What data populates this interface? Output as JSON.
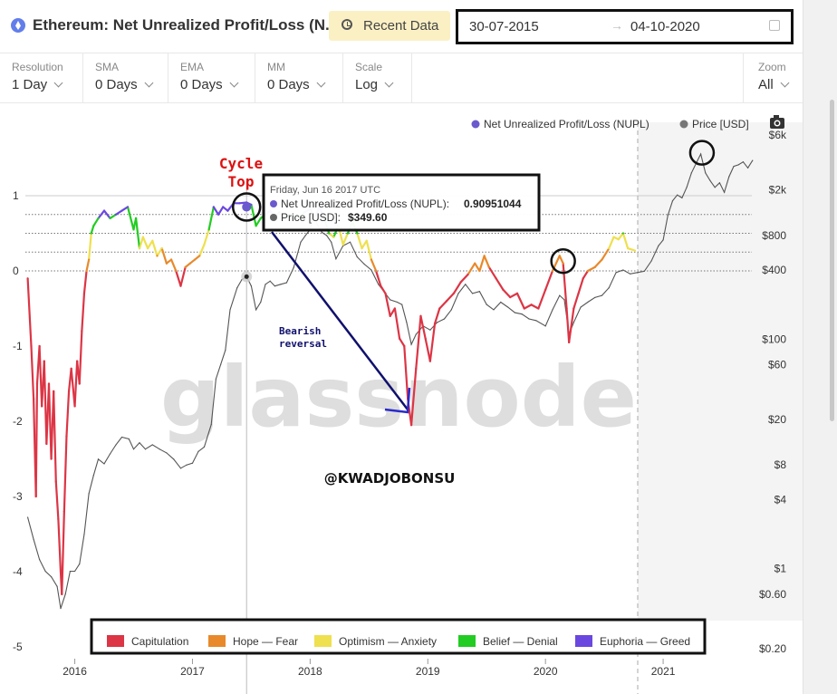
{
  "header": {
    "title": "Ethereum: Net Unrealized Profit/Loss (N...",
    "recent_button": "Recent Data",
    "date_from": "30-07-2015",
    "date_arrow": "→",
    "date_to": "04-10-2020"
  },
  "controls": [
    {
      "label": "Resolution",
      "value": "1 Day"
    },
    {
      "label": "SMA",
      "value": "0 Days"
    },
    {
      "label": "EMA",
      "value": "0 Days"
    },
    {
      "label": "MM",
      "value": "0 Days"
    },
    {
      "label": "Scale",
      "value": "Log"
    }
  ],
  "zoom": {
    "label": "Zoom",
    "value": "All"
  },
  "colors": {
    "capitulation": "#dc3545",
    "hope_fear": "#e8892b",
    "optimism_anxiety": "#eee04f",
    "belief_denial": "#22cc22",
    "euphoria_greed": "#6a48e0",
    "price": "#555555",
    "nupl_marker": "#6a5acd"
  },
  "chart_data": {
    "type": "line",
    "series": [
      {
        "name": "Net Unrealized Profit/Loss (NUPL)",
        "axis": "left",
        "points": [
          [
            2015.6,
            -0.1
          ],
          [
            2015.63,
            -1.0
          ],
          [
            2015.65,
            -1.7
          ],
          [
            2015.67,
            -3.0
          ],
          [
            2015.68,
            -1.5
          ],
          [
            2015.7,
            -1.0
          ],
          [
            2015.72,
            -1.8
          ],
          [
            2015.74,
            -1.2
          ],
          [
            2015.76,
            -2.3
          ],
          [
            2015.78,
            -1.5
          ],
          [
            2015.8,
            -2.5
          ],
          [
            2015.82,
            -1.6
          ],
          [
            2015.84,
            -2.8
          ],
          [
            2015.86,
            -3.3
          ],
          [
            2015.88,
            -4.0
          ],
          [
            2015.89,
            -4.3
          ],
          [
            2015.91,
            -3.2
          ],
          [
            2015.93,
            -2.2
          ],
          [
            2015.95,
            -1.6
          ],
          [
            2015.97,
            -1.3
          ],
          [
            2016.0,
            -1.8
          ],
          [
            2016.02,
            -1.2
          ],
          [
            2016.04,
            -1.5
          ],
          [
            2016.06,
            -0.8
          ],
          [
            2016.08,
            -0.3
          ],
          [
            2016.1,
            0.0
          ],
          [
            2016.12,
            0.15
          ],
          [
            2016.14,
            0.5
          ],
          [
            2016.16,
            0.6
          ],
          [
            2016.2,
            0.7
          ],
          [
            2016.25,
            0.8
          ],
          [
            2016.3,
            0.7
          ],
          [
            2016.35,
            0.75
          ],
          [
            2016.4,
            0.8
          ],
          [
            2016.45,
            0.85
          ],
          [
            2016.5,
            0.55
          ],
          [
            2016.52,
            0.7
          ],
          [
            2016.55,
            0.3
          ],
          [
            2016.58,
            0.45
          ],
          [
            2016.62,
            0.3
          ],
          [
            2016.66,
            0.4
          ],
          [
            2016.7,
            0.2
          ],
          [
            2016.74,
            0.3
          ],
          [
            2016.78,
            0.1
          ],
          [
            2016.82,
            0.15
          ],
          [
            2016.86,
            0.0
          ],
          [
            2016.9,
            -0.2
          ],
          [
            2016.94,
            0.05
          ],
          [
            2016.98,
            0.1
          ],
          [
            2017.02,
            0.15
          ],
          [
            2017.06,
            0.2
          ],
          [
            2017.1,
            0.35
          ],
          [
            2017.14,
            0.55
          ],
          [
            2017.18,
            0.85
          ],
          [
            2017.22,
            0.75
          ],
          [
            2017.26,
            0.85
          ],
          [
            2017.3,
            0.8
          ],
          [
            2017.35,
            0.9
          ],
          [
            2017.4,
            0.9
          ],
          [
            2017.46,
            0.91
          ],
          [
            2017.5,
            0.88
          ],
          [
            2017.54,
            0.6
          ],
          [
            2017.58,
            0.7
          ],
          [
            2017.62,
            0.75
          ],
          [
            2017.66,
            0.8
          ],
          [
            2017.7,
            0.72
          ],
          [
            2017.74,
            0.78
          ],
          [
            2017.78,
            0.7
          ],
          [
            2017.82,
            0.75
          ],
          [
            2017.86,
            0.68
          ],
          [
            2017.9,
            0.7
          ],
          [
            2017.95,
            0.78
          ],
          [
            2018.0,
            0.82
          ],
          [
            2018.04,
            0.72
          ],
          [
            2018.08,
            0.85
          ],
          [
            2018.12,
            0.7
          ],
          [
            2018.16,
            0.5
          ],
          [
            2018.2,
            0.45
          ],
          [
            2018.24,
            0.6
          ],
          [
            2018.28,
            0.35
          ],
          [
            2018.32,
            0.5
          ],
          [
            2018.36,
            0.65
          ],
          [
            2018.4,
            0.5
          ],
          [
            2018.44,
            0.3
          ],
          [
            2018.48,
            0.4
          ],
          [
            2018.52,
            0.15
          ],
          [
            2018.56,
            0.0
          ],
          [
            2018.6,
            -0.2
          ],
          [
            2018.64,
            -0.3
          ],
          [
            2018.68,
            -0.6
          ],
          [
            2018.72,
            -0.5
          ],
          [
            2018.76,
            -0.9
          ],
          [
            2018.8,
            -1.0
          ],
          [
            2018.83,
            -1.7
          ],
          [
            2018.86,
            -2.05
          ],
          [
            2018.9,
            -1.3
          ],
          [
            2018.94,
            -0.6
          ],
          [
            2018.98,
            -0.9
          ],
          [
            2019.02,
            -1.2
          ],
          [
            2019.06,
            -0.7
          ],
          [
            2019.1,
            -0.5
          ],
          [
            2019.16,
            -0.4
          ],
          [
            2019.22,
            -0.3
          ],
          [
            2019.28,
            -0.15
          ],
          [
            2019.34,
            -0.05
          ],
          [
            2019.4,
            0.1
          ],
          [
            2019.44,
            0.0
          ],
          [
            2019.48,
            0.2
          ],
          [
            2019.52,
            0.05
          ],
          [
            2019.58,
            -0.1
          ],
          [
            2019.64,
            -0.25
          ],
          [
            2019.7,
            -0.35
          ],
          [
            2019.76,
            -0.3
          ],
          [
            2019.82,
            -0.5
          ],
          [
            2019.88,
            -0.45
          ],
          [
            2019.94,
            -0.5
          ],
          [
            2020.0,
            -0.25
          ],
          [
            2020.06,
            0.0
          ],
          [
            2020.12,
            0.2
          ],
          [
            2020.15,
            0.1
          ],
          [
            2020.18,
            -0.5
          ],
          [
            2020.2,
            -0.95
          ],
          [
            2020.24,
            -0.5
          ],
          [
            2020.28,
            -0.3
          ],
          [
            2020.32,
            -0.1
          ],
          [
            2020.36,
            0.0
          ],
          [
            2020.42,
            0.05
          ],
          [
            2020.48,
            0.15
          ],
          [
            2020.54,
            0.3
          ],
          [
            2020.58,
            0.45
          ],
          [
            2020.62,
            0.42
          ],
          [
            2020.66,
            0.5
          ],
          [
            2020.7,
            0.3
          ],
          [
            2020.76,
            0.27
          ]
        ]
      },
      {
        "name": "Price [USD]",
        "axis": "right",
        "points": [
          [
            2015.6,
            2.8
          ],
          [
            2015.65,
            1.8
          ],
          [
            2015.7,
            1.2
          ],
          [
            2015.75,
            0.95
          ],
          [
            2015.8,
            0.85
          ],
          [
            2015.85,
            0.7
          ],
          [
            2015.88,
            0.45
          ],
          [
            2015.92,
            0.6
          ],
          [
            2015.96,
            0.95
          ],
          [
            2016.0,
            0.95
          ],
          [
            2016.04,
            1.1
          ],
          [
            2016.08,
            2.0
          ],
          [
            2016.12,
            4.5
          ],
          [
            2016.16,
            6.5
          ],
          [
            2016.2,
            9.0
          ],
          [
            2016.25,
            8.2
          ],
          [
            2016.3,
            10.0
          ],
          [
            2016.35,
            12.0
          ],
          [
            2016.4,
            14.0
          ],
          [
            2016.46,
            13.5
          ],
          [
            2016.5,
            11.0
          ],
          [
            2016.55,
            12.5
          ],
          [
            2016.6,
            11.0
          ],
          [
            2016.66,
            12.0
          ],
          [
            2016.72,
            11.0
          ],
          [
            2016.78,
            10.2
          ],
          [
            2016.84,
            9.0
          ],
          [
            2016.9,
            7.5
          ],
          [
            2016.95,
            8.0
          ],
          [
            2017.0,
            8.3
          ],
          [
            2017.05,
            10.5
          ],
          [
            2017.1,
            11.5
          ],
          [
            2017.16,
            18.0
          ],
          [
            2017.2,
            45.0
          ],
          [
            2017.24,
            60.0
          ],
          [
            2017.28,
            80.0
          ],
          [
            2017.32,
            180.0
          ],
          [
            2017.38,
            280.0
          ],
          [
            2017.42,
            330.0
          ],
          [
            2017.46,
            350.0
          ],
          [
            2017.5,
            290.0
          ],
          [
            2017.54,
            180.0
          ],
          [
            2017.58,
            210.0
          ],
          [
            2017.62,
            300.0
          ],
          [
            2017.66,
            320.0
          ],
          [
            2017.7,
            290.0
          ],
          [
            2017.75,
            300.0
          ],
          [
            2017.8,
            310.0
          ],
          [
            2017.86,
            420.0
          ],
          [
            2017.92,
            700.0
          ],
          [
            2017.96,
            800.0
          ],
          [
            2018.0,
            900.0
          ],
          [
            2018.03,
            1200.0
          ],
          [
            2018.06,
            1000.0
          ],
          [
            2018.1,
            850.0
          ],
          [
            2018.14,
            800.0
          ],
          [
            2018.18,
            700.0
          ],
          [
            2018.22,
            500.0
          ],
          [
            2018.28,
            650.0
          ],
          [
            2018.34,
            700.0
          ],
          [
            2018.4,
            520.0
          ],
          [
            2018.46,
            450.0
          ],
          [
            2018.52,
            400.0
          ],
          [
            2018.58,
            300.0
          ],
          [
            2018.64,
            250.0
          ],
          [
            2018.68,
            220.0
          ],
          [
            2018.74,
            210.0
          ],
          [
            2018.78,
            200.0
          ],
          [
            2018.82,
            140.0
          ],
          [
            2018.86,
            90.0
          ],
          [
            2018.9,
            110.0
          ],
          [
            2018.96,
            130.0
          ],
          [
            2019.02,
            120.0
          ],
          [
            2019.08,
            140.0
          ],
          [
            2019.14,
            150.0
          ],
          [
            2019.2,
            180.0
          ],
          [
            2019.26,
            250.0
          ],
          [
            2019.32,
            300.0
          ],
          [
            2019.38,
            250.0
          ],
          [
            2019.44,
            260.0
          ],
          [
            2019.5,
            200.0
          ],
          [
            2019.56,
            180.0
          ],
          [
            2019.62,
            210.0
          ],
          [
            2019.68,
            190.0
          ],
          [
            2019.74,
            170.0
          ],
          [
            2019.8,
            165.0
          ],
          [
            2019.86,
            150.0
          ],
          [
            2019.92,
            145.0
          ],
          [
            2020.0,
            130.0
          ],
          [
            2020.06,
            180.0
          ],
          [
            2020.12,
            240.0
          ],
          [
            2020.16,
            220.0
          ],
          [
            2020.2,
            110.0
          ],
          [
            2020.24,
            140.0
          ],
          [
            2020.3,
            190.0
          ],
          [
            2020.36,
            210.0
          ],
          [
            2020.42,
            230.0
          ],
          [
            2020.48,
            240.0
          ],
          [
            2020.54,
            280.0
          ],
          [
            2020.6,
            380.0
          ],
          [
            2020.66,
            400.0
          ],
          [
            2020.72,
            370.0
          ],
          [
            2020.78,
            380.0
          ],
          [
            2020.84,
            390.0
          ],
          [
            2020.9,
            480.0
          ],
          [
            2020.96,
            650.0
          ],
          [
            2021.0,
            730.0
          ],
          [
            2021.04,
            1200.0
          ],
          [
            2021.08,
            1600.0
          ],
          [
            2021.12,
            1800.0
          ],
          [
            2021.16,
            1700.0
          ],
          [
            2021.2,
            2100.0
          ],
          [
            2021.24,
            2800.0
          ],
          [
            2021.28,
            3400.0
          ],
          [
            2021.32,
            4100.0
          ],
          [
            2021.36,
            2800.0
          ],
          [
            2021.4,
            2400.0
          ],
          [
            2021.44,
            2100.0
          ],
          [
            2021.48,
            2300.0
          ],
          [
            2021.52,
            1900.0
          ],
          [
            2021.56,
            2600.0
          ],
          [
            2021.6,
            3200.0
          ],
          [
            2021.64,
            3300.0
          ],
          [
            2021.68,
            3500.0
          ],
          [
            2021.72,
            3100.0
          ],
          [
            2021.76,
            3600.0
          ]
        ]
      }
    ],
    "left_axis": {
      "ticks": [
        "1",
        "0",
        "-1",
        "-2",
        "-3",
        "-4",
        "-5"
      ],
      "scale": "linear",
      "range": [
        -5,
        1.7
      ]
    },
    "right_axis": {
      "ticks": [
        "$6k",
        "$2k",
        "$800",
        "$400",
        "$100",
        "$60",
        "$20",
        "$8",
        "$4",
        "$1",
        "$0.60",
        "$0.20"
      ],
      "scale": "log",
      "range": [
        0.2,
        6000
      ]
    },
    "x_axis": {
      "ticks": [
        "2016",
        "2017",
        "2018",
        "2019",
        "2020",
        "2021"
      ],
      "range": [
        2015.58,
        2021.8
      ]
    },
    "legend_top": [
      "Net Unrealized Profit/Loss (NUPL)",
      "Price [USD]"
    ],
    "legend_bottom": [
      "Capitulation",
      "Hope — Fear",
      "Optimism — Anxiety",
      "Belief — Denial",
      "Euphoria — Greed"
    ],
    "zone_lines": [
      0.75,
      0.5,
      0.25,
      0.0
    ],
    "crosshair_x": 2017.46,
    "tooltip": {
      "date": "Friday, Jun 16 2017 UTC",
      "nupl_label": "Net Unrealized Profit/Loss (NUPL):",
      "nupl_value": "0.90951044",
      "price_label": "Price [USD]:",
      "price_value": "$349.60"
    },
    "annotations": {
      "cycle_top": [
        "Cycle",
        "Top"
      ],
      "bearish": [
        "Bearish",
        "reversal"
      ],
      "handle": "@KWADJOBONSU",
      "watermark": "glassnode"
    },
    "marked_points": [
      {
        "series": "NUPL",
        "x": 2017.46,
        "y": 0.85
      },
      {
        "series": "NUPL",
        "x": 2020.15,
        "y": 0.13
      },
      {
        "series": "Price",
        "x": 2021.33,
        "y": 4200
      }
    ]
  }
}
